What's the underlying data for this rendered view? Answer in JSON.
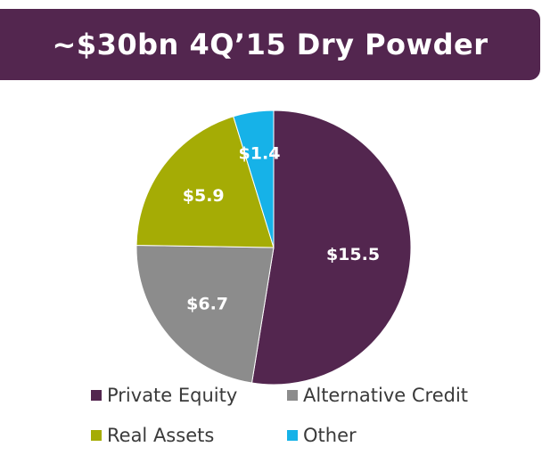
{
  "title": "~$30bn 4Q’15 Dry Powder",
  "chart_data": {
    "type": "pie",
    "title": "~$30bn 4Q’15 Dry Powder",
    "start_angle_deg": 0,
    "direction": "clockwise",
    "slices": [
      {
        "name": "Private Equity",
        "value": 15.5,
        "label": "$15.5",
        "color": "#53264f"
      },
      {
        "name": "Alternative Credit",
        "value": 6.7,
        "label": "$6.7",
        "color": "#8c8c8c"
      },
      {
        "name": "Real Assets",
        "value": 5.9,
        "label": "$5.9",
        "color": "#a5ac05"
      },
      {
        "name": "Other",
        "value": 1.4,
        "label": "$1.4",
        "color": "#16b2e8"
      }
    ],
    "legend_position": "bottom"
  }
}
